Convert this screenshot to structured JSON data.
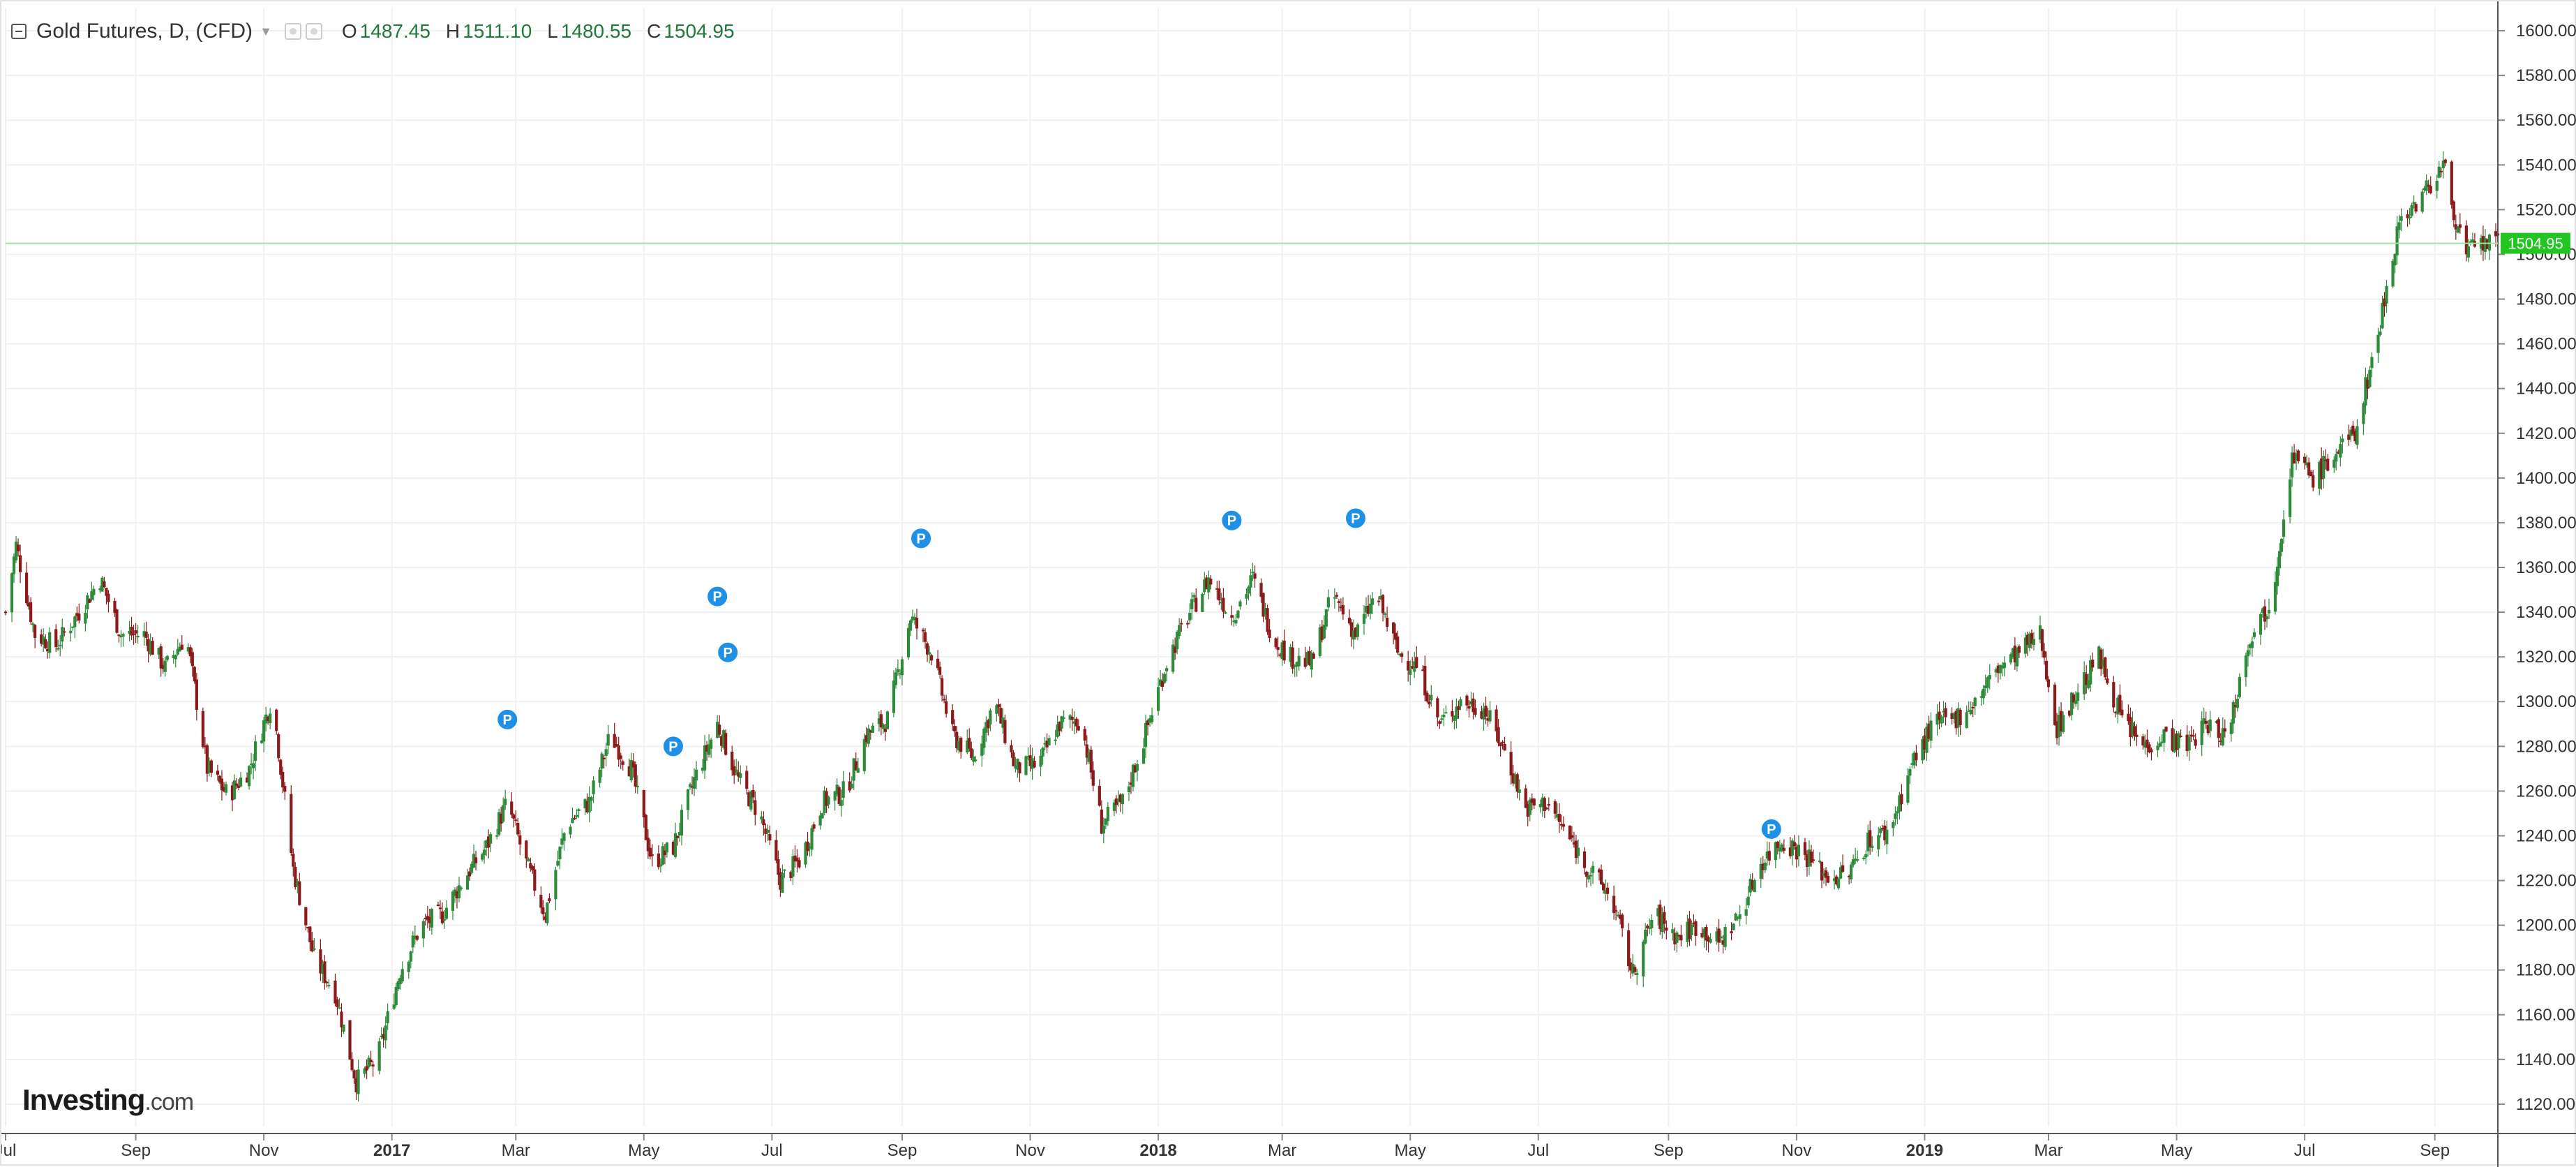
{
  "header": {
    "symbol_title": "Gold Futures, D, (CFD)",
    "ohlc": [
      {
        "key": "O",
        "value": "1487.45"
      },
      {
        "key": "H",
        "value": "1511.10"
      },
      {
        "key": "L",
        "value": "1480.55"
      },
      {
        "key": "C",
        "value": "1504.95"
      }
    ]
  },
  "logo": {
    "text": "Investing",
    "suffix": ".com"
  },
  "colors": {
    "up": "#2e8b3a",
    "down": "#8b1a1a",
    "grid": "#f1f1f1",
    "last_price_line": "#9be79b",
    "last_price_badge": "#22c522",
    "marker": "#1e90e6"
  },
  "icons": [
    "collapse-icon",
    "settings-icon",
    "visibility-icon"
  ],
  "chart_data": {
    "type": "candlestick",
    "title": "Gold Futures, D, (CFD)",
    "xlabel": "",
    "ylabel": "",
    "ylim": [
      1110,
      1610
    ],
    "y_ticks": [
      "1120.00",
      "1140.00",
      "1160.00",
      "1180.00",
      "1200.00",
      "1220.00",
      "1240.00",
      "1260.00",
      "1280.00",
      "1300.00",
      "1320.00",
      "1340.00",
      "1360.00",
      "1380.00",
      "1400.00",
      "1420.00",
      "1440.00",
      "1460.00",
      "1480.00",
      "1500.00",
      "1520.00",
      "1540.00",
      "1560.00",
      "1580.00",
      "1600.00"
    ],
    "x_range": [
      "2016-07-01",
      "2019-10-01"
    ],
    "x_ticks": [
      {
        "label": "Jul",
        "date": "2016-07-01"
      },
      {
        "label": "Sep",
        "date": "2016-09-01"
      },
      {
        "label": "Nov",
        "date": "2016-11-01"
      },
      {
        "label": "2017",
        "date": "2017-01-01",
        "bold": true
      },
      {
        "label": "Mar",
        "date": "2017-03-01"
      },
      {
        "label": "May",
        "date": "2017-05-01"
      },
      {
        "label": "Jul",
        "date": "2017-07-01"
      },
      {
        "label": "Sep",
        "date": "2017-09-01"
      },
      {
        "label": "Nov",
        "date": "2017-11-01"
      },
      {
        "label": "2018",
        "date": "2018-01-01",
        "bold": true
      },
      {
        "label": "Mar",
        "date": "2018-03-01"
      },
      {
        "label": "May",
        "date": "2018-05-01"
      },
      {
        "label": "Jul",
        "date": "2018-07-01"
      },
      {
        "label": "Sep",
        "date": "2018-09-01"
      },
      {
        "label": "Nov",
        "date": "2018-11-01"
      },
      {
        "label": "2019",
        "date": "2019-01-01",
        "bold": true
      },
      {
        "label": "Mar",
        "date": "2019-03-01"
      },
      {
        "label": "May",
        "date": "2019-05-01"
      },
      {
        "label": "Jul",
        "date": "2019-07-01"
      },
      {
        "label": "Sep",
        "date": "2019-09-01"
      }
    ],
    "close_path": [
      [
        "2016-07-01",
        1340
      ],
      [
        "2016-07-06",
        1370
      ],
      [
        "2016-07-15",
        1330
      ],
      [
        "2016-07-25",
        1325
      ],
      [
        "2016-08-05",
        1340
      ],
      [
        "2016-08-15",
        1355
      ],
      [
        "2016-08-25",
        1330
      ],
      [
        "2016-09-05",
        1330
      ],
      [
        "2016-09-15",
        1315
      ],
      [
        "2016-09-25",
        1330
      ],
      [
        "2016-10-05",
        1270
      ],
      [
        "2016-10-15",
        1258
      ],
      [
        "2016-10-25",
        1270
      ],
      [
        "2016-11-05",
        1302
      ],
      [
        "2016-11-15",
        1225
      ],
      [
        "2016-11-25",
        1185
      ],
      [
        "2016-12-05",
        1170
      ],
      [
        "2016-12-15",
        1130
      ],
      [
        "2016-12-25",
        1140
      ],
      [
        "2017-01-05",
        1180
      ],
      [
        "2017-01-15",
        1200
      ],
      [
        "2017-01-25",
        1205
      ],
      [
        "2017-02-05",
        1222
      ],
      [
        "2017-02-15",
        1235
      ],
      [
        "2017-02-25",
        1255
      ],
      [
        "2017-03-05",
        1230
      ],
      [
        "2017-03-15",
        1205
      ],
      [
        "2017-03-25",
        1245
      ],
      [
        "2017-04-05",
        1255
      ],
      [
        "2017-04-15",
        1285
      ],
      [
        "2017-04-25",
        1270
      ],
      [
        "2017-05-05",
        1228
      ],
      [
        "2017-05-15",
        1235
      ],
      [
        "2017-05-25",
        1265
      ],
      [
        "2017-06-05",
        1290
      ],
      [
        "2017-06-15",
        1265
      ],
      [
        "2017-06-25",
        1250
      ],
      [
        "2017-07-05",
        1220
      ],
      [
        "2017-07-15",
        1230
      ],
      [
        "2017-07-25",
        1255
      ],
      [
        "2017-08-05",
        1260
      ],
      [
        "2017-08-15",
        1285
      ],
      [
        "2017-08-25",
        1292
      ],
      [
        "2017-09-05",
        1338
      ],
      [
        "2017-09-15",
        1322
      ],
      [
        "2017-09-25",
        1285
      ],
      [
        "2017-10-05",
        1275
      ],
      [
        "2017-10-15",
        1300
      ],
      [
        "2017-10-25",
        1270
      ],
      [
        "2017-11-05",
        1272
      ],
      [
        "2017-11-15",
        1290
      ],
      [
        "2017-11-25",
        1292
      ],
      [
        "2017-12-05",
        1245
      ],
      [
        "2017-12-15",
        1255
      ],
      [
        "2017-12-25",
        1283
      ],
      [
        "2018-01-05",
        1318
      ],
      [
        "2018-01-15",
        1338
      ],
      [
        "2018-01-25",
        1355
      ],
      [
        "2018-02-05",
        1338
      ],
      [
        "2018-02-15",
        1355
      ],
      [
        "2018-02-25",
        1328
      ],
      [
        "2018-03-05",
        1320
      ],
      [
        "2018-03-15",
        1317
      ],
      [
        "2018-03-25",
        1348
      ],
      [
        "2018-04-05",
        1330
      ],
      [
        "2018-04-15",
        1348
      ],
      [
        "2018-04-25",
        1322
      ],
      [
        "2018-05-05",
        1315
      ],
      [
        "2018-05-15",
        1290
      ],
      [
        "2018-05-25",
        1300
      ],
      [
        "2018-06-05",
        1297
      ],
      [
        "2018-06-15",
        1278
      ],
      [
        "2018-06-25",
        1252
      ],
      [
        "2018-07-05",
        1255
      ],
      [
        "2018-07-15",
        1240
      ],
      [
        "2018-07-25",
        1225
      ],
      [
        "2018-08-05",
        1212
      ],
      [
        "2018-08-15",
        1178
      ],
      [
        "2018-08-25",
        1205
      ],
      [
        "2018-09-05",
        1195
      ],
      [
        "2018-09-15",
        1200
      ],
      [
        "2018-09-25",
        1192
      ],
      [
        "2018-10-05",
        1205
      ],
      [
        "2018-10-15",
        1228
      ],
      [
        "2018-10-25",
        1238
      ],
      [
        "2018-11-05",
        1232
      ],
      [
        "2018-11-15",
        1222
      ],
      [
        "2018-11-25",
        1222
      ],
      [
        "2018-12-05",
        1238
      ],
      [
        "2018-12-15",
        1242
      ],
      [
        "2018-12-25",
        1270
      ],
      [
        "2019-01-05",
        1290
      ],
      [
        "2019-01-15",
        1292
      ],
      [
        "2019-01-25",
        1300
      ],
      [
        "2019-02-05",
        1315
      ],
      [
        "2019-02-15",
        1322
      ],
      [
        "2019-02-25",
        1330
      ],
      [
        "2019-03-05",
        1288
      ],
      [
        "2019-03-15",
        1305
      ],
      [
        "2019-03-25",
        1320
      ],
      [
        "2019-04-05",
        1292
      ],
      [
        "2019-04-15",
        1280
      ],
      [
        "2019-04-25",
        1285
      ],
      [
        "2019-05-05",
        1280
      ],
      [
        "2019-05-15",
        1290
      ],
      [
        "2019-05-25",
        1285
      ],
      [
        "2019-06-05",
        1330
      ],
      [
        "2019-06-15",
        1345
      ],
      [
        "2019-06-25",
        1410
      ],
      [
        "2019-07-05",
        1400
      ],
      [
        "2019-07-15",
        1410
      ],
      [
        "2019-07-25",
        1420
      ],
      [
        "2019-08-05",
        1465
      ],
      [
        "2019-08-15",
        1515
      ],
      [
        "2019-08-25",
        1525
      ],
      [
        "2019-09-05",
        1540
      ],
      [
        "2019-09-15",
        1500
      ],
      [
        "2019-09-25",
        1505
      ],
      [
        "2019-10-01",
        1504.95
      ]
    ],
    "last_price": 1504.95,
    "last_price_label": "1504.95",
    "markers": [
      {
        "label": "P",
        "date": "2017-02-25",
        "price": 1292
      },
      {
        "label": "P",
        "date": "2017-05-15",
        "price": 1280
      },
      {
        "label": "P",
        "date": "2017-06-05",
        "price": 1347
      },
      {
        "label": "P",
        "date": "2017-06-10",
        "price": 1322
      },
      {
        "label": "P",
        "date": "2017-09-10",
        "price": 1373
      },
      {
        "label": "P",
        "date": "2018-02-05",
        "price": 1381
      },
      {
        "label": "P",
        "date": "2018-04-05",
        "price": 1382
      },
      {
        "label": "P",
        "date": "2018-10-20",
        "price": 1243
      }
    ],
    "grid": true,
    "legend": "none"
  }
}
